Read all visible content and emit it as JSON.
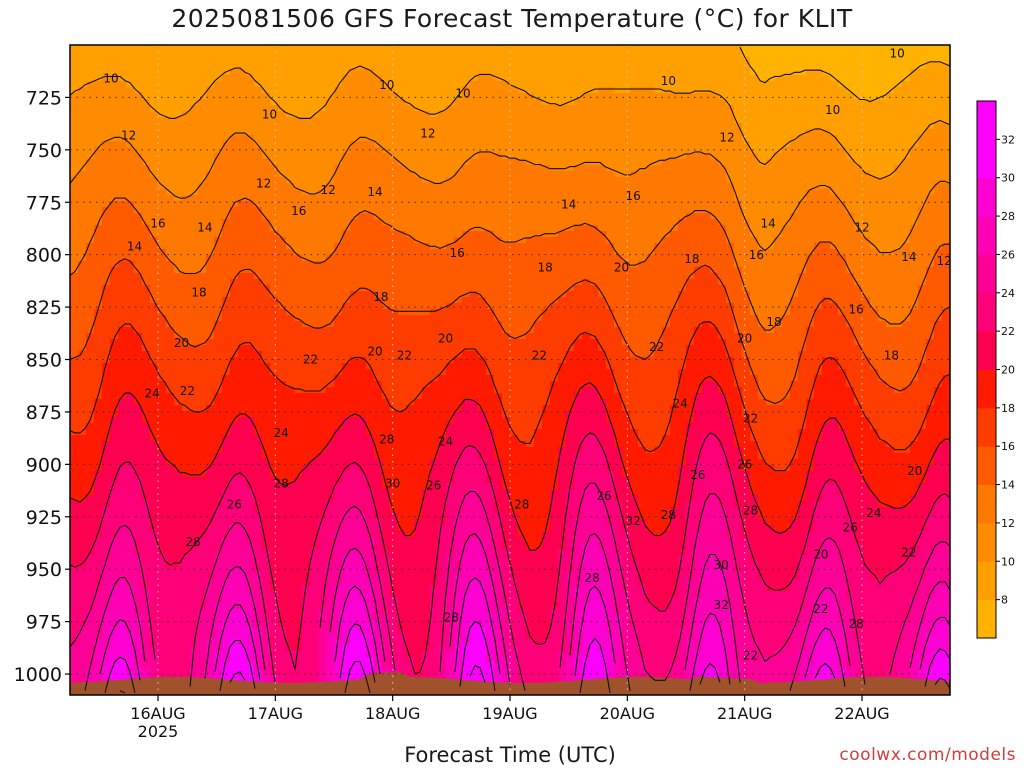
{
  "title": "2025081506 GFS Forecast Temperature (°C) for KLIT",
  "credit": "coolwx.com/models",
  "chart_data": {
    "type": "heatmap",
    "title": "2025081506 GFS Forecast Temperature (°C) for KLIT",
    "xlabel": "Forecast Time (UTC)",
    "ylabel": "",
    "x_ticks": [
      {
        "label": "16AUG",
        "sublabel": "2025",
        "day": 1
      },
      {
        "label": "17AUG",
        "sublabel": "",
        "day": 2
      },
      {
        "label": "18AUG",
        "sublabel": "",
        "day": 3
      },
      {
        "label": "19AUG",
        "sublabel": "",
        "day": 4
      },
      {
        "label": "20AUG",
        "sublabel": "",
        "day": 5
      },
      {
        "label": "21AUG",
        "sublabel": "",
        "day": 6
      },
      {
        "label": "22AUG",
        "sublabel": "",
        "day": 7
      }
    ],
    "x_range_days": [
      0.25,
      7.75
    ],
    "y_axis": "pressure (hPa)",
    "y_range": [
      700,
      1010
    ],
    "y_ticks": [
      725,
      750,
      775,
      800,
      825,
      850,
      875,
      900,
      925,
      950,
      975,
      1000
    ],
    "colorbar": {
      "levels": [
        8,
        10,
        12,
        14,
        16,
        18,
        20,
        22,
        24,
        26,
        28,
        30,
        32
      ],
      "labels": [
        "8",
        "10",
        "12",
        "14",
        "16",
        "18",
        "20",
        "22",
        "24",
        "26",
        "28",
        "30",
        "32"
      ],
      "colors": [
        "#ffb300",
        "#ffa000",
        "#ff8c00",
        "#ff7800",
        "#ff5a00",
        "#ff3c00",
        "#ff1a00",
        "#ff0050",
        "#ff0078",
        "#ff0096",
        "#ff00b4",
        "#ff00d2",
        "#ff00ff",
        "#ff00ff"
      ]
    },
    "contour_interval": 2,
    "description_values": {
      "temp_1000hPa_max": 34,
      "temp_1000hPa_min": 22,
      "temp_725hPa_typical": 10
    },
    "contour_labels": [
      {
        "t": "10",
        "x": 0.6,
        "p": 718
      },
      {
        "t": "10",
        "x": 1.95,
        "p": 735
      },
      {
        "t": "10",
        "x": 2.95,
        "p": 721
      },
      {
        "t": "10",
        "x": 3.6,
        "p": 725
      },
      {
        "t": "10",
        "x": 5.35,
        "p": 719
      },
      {
        "t": "10",
        "x": 6.75,
        "p": 733
      },
      {
        "t": "10",
        "x": 7.3,
        "p": 706
      },
      {
        "t": "12",
        "x": 0.75,
        "p": 745
      },
      {
        "t": "12",
        "x": 1.9,
        "p": 768
      },
      {
        "t": "12",
        "x": 2.45,
        "p": 771
      },
      {
        "t": "12",
        "x": 3.3,
        "p": 744
      },
      {
        "t": "12",
        "x": 5.85,
        "p": 746
      },
      {
        "t": "12",
        "x": 7.0,
        "p": 789
      },
      {
        "t": "12",
        "x": 7.7,
        "p": 805
      },
      {
        "t": "14",
        "x": 0.8,
        "p": 798
      },
      {
        "t": "14",
        "x": 1.4,
        "p": 789
      },
      {
        "t": "14",
        "x": 2.85,
        "p": 772
      },
      {
        "t": "14",
        "x": 4.5,
        "p": 778
      },
      {
        "t": "14",
        "x": 6.2,
        "p": 787
      },
      {
        "t": "14",
        "x": 7.4,
        "p": 803
      },
      {
        "t": "16",
        "x": 1.0,
        "p": 787
      },
      {
        "t": "16",
        "x": 2.2,
        "p": 781
      },
      {
        "t": "16",
        "x": 3.55,
        "p": 801
      },
      {
        "t": "16",
        "x": 5.05,
        "p": 774
      },
      {
        "t": "16",
        "x": 6.1,
        "p": 802
      },
      {
        "t": "16",
        "x": 6.95,
        "p": 828
      },
      {
        "t": "18",
        "x": 1.35,
        "p": 820
      },
      {
        "t": "18",
        "x": 2.9,
        "p": 822
      },
      {
        "t": "18",
        "x": 4.3,
        "p": 808
      },
      {
        "t": "18",
        "x": 5.55,
        "p": 804
      },
      {
        "t": "18",
        "x": 6.25,
        "p": 834
      },
      {
        "t": "18",
        "x": 7.25,
        "p": 850
      },
      {
        "t": "20",
        "x": 1.2,
        "p": 844
      },
      {
        "t": "20",
        "x": 2.85,
        "p": 848
      },
      {
        "t": "20",
        "x": 3.45,
        "p": 842
      },
      {
        "t": "20",
        "x": 4.95,
        "p": 808
      },
      {
        "t": "20",
        "x": 6.0,
        "p": 842
      },
      {
        "t": "20",
        "x": 7.45,
        "p": 905
      },
      {
        "t": "20",
        "x": 6.65,
        "p": 945
      },
      {
        "t": "22",
        "x": 1.25,
        "p": 867
      },
      {
        "t": "22",
        "x": 2.3,
        "p": 852
      },
      {
        "t": "22",
        "x": 3.1,
        "p": 850
      },
      {
        "t": "22",
        "x": 4.25,
        "p": 850
      },
      {
        "t": "22",
        "x": 5.25,
        "p": 846
      },
      {
        "t": "22",
        "x": 6.05,
        "p": 880
      },
      {
        "t": "22",
        "x": 7.4,
        "p": 944
      },
      {
        "t": "22",
        "x": 6.65,
        "p": 971
      },
      {
        "t": "22",
        "x": 6.05,
        "p": 993
      },
      {
        "t": "24",
        "x": 0.95,
        "p": 868
      },
      {
        "t": "24",
        "x": 2.05,
        "p": 887
      },
      {
        "t": "24",
        "x": 3.45,
        "p": 891
      },
      {
        "t": "24",
        "x": 5.45,
        "p": 873
      },
      {
        "t": "24",
        "x": 7.1,
        "p": 925
      },
      {
        "t": "26",
        "x": 1.65,
        "p": 921
      },
      {
        "t": "26",
        "x": 3.35,
        "p": 912
      },
      {
        "t": "26",
        "x": 4.8,
        "p": 917
      },
      {
        "t": "26",
        "x": 5.6,
        "p": 907
      },
      {
        "t": "26",
        "x": 6.9,
        "p": 932
      },
      {
        "t": "26",
        "x": 6.0,
        "p": 902
      },
      {
        "t": "28",
        "x": 1.3,
        "p": 939
      },
      {
        "t": "28",
        "x": 2.05,
        "p": 911
      },
      {
        "t": "28",
        "x": 2.95,
        "p": 890
      },
      {
        "t": "28",
        "x": 4.1,
        "p": 921
      },
      {
        "t": "28",
        "x": 3.5,
        "p": 975
      },
      {
        "t": "28",
        "x": 4.7,
        "p": 956
      },
      {
        "t": "28",
        "x": 5.35,
        "p": 926
      },
      {
        "t": "28",
        "x": 6.05,
        "p": 924
      },
      {
        "t": "28",
        "x": 6.95,
        "p": 978
      },
      {
        "t": "30",
        "x": 3.0,
        "p": 911
      },
      {
        "t": "30",
        "x": 5.8,
        "p": 950
      },
      {
        "t": "32",
        "x": 5.05,
        "p": 929
      },
      {
        "t": "32",
        "x": 5.8,
        "p": 969
      }
    ]
  }
}
